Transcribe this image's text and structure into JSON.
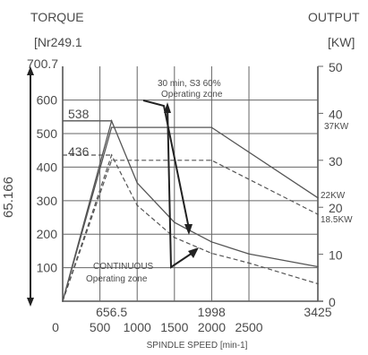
{
  "chart_data": {
    "type": "line",
    "title_left": "TORQUE",
    "unit_left": "[Nr249.1",
    "title_right": "OUTPUT",
    "unit_right": "[KW]",
    "xlabel": "SPINDLE   SPEED [min-1]",
    "ylabel_vertical": "65.166",
    "top_left_tick": "700.7",
    "x_ticks_main": [
      "0",
      "500",
      "1000",
      "1500",
      "2000",
      "2500"
    ],
    "x_ticks_special": [
      "656.5",
      "1998",
      "3425"
    ],
    "y_left_ticks": [
      "0",
      "100",
      "200",
      "300",
      "400",
      "500",
      "600"
    ],
    "y_right_ticks": [
      "0",
      "10",
      "20",
      "30",
      "40",
      "50"
    ],
    "level_labels": [
      "538",
      "436"
    ],
    "right_labels": [
      "37KW",
      "22KW",
      "18.5KW"
    ],
    "annotations": {
      "s3_line1": "30 min, S3 60%",
      "s3_line2": "Operating zone",
      "cont_line1": "CONTINUOUS",
      "cont_line2": "Operating zone"
    },
    "xlim": [
      0,
      3425
    ],
    "ylim_torque": [
      0,
      700.7
    ],
    "ylim_output": [
      0,
      50
    ],
    "series": [
      {
        "name": "30 min, S3 60%",
        "quantity": "torque",
        "style": "solid",
        "x": [
          0,
          656.5,
          1000,
          1500,
          1998,
          2500,
          3425
        ],
        "y": [
          0,
          538,
          353,
          235,
          177,
          141,
          103
        ]
      },
      {
        "name": "CONTINUOUS",
        "quantity": "torque",
        "style": "dashed",
        "x": [
          0,
          656.5,
          1000,
          1500,
          1998,
          2500,
          3425
        ],
        "y": [
          0,
          436,
          286,
          190,
          143,
          114,
          52
        ]
      },
      {
        "name": "30 min, S3 60%",
        "quantity": "output",
        "style": "solid",
        "x": [
          0,
          656.5,
          1998,
          3425
        ],
        "y": [
          0,
          37,
          37,
          22
        ]
      },
      {
        "name": "CONTINUOUS",
        "quantity": "output",
        "style": "dashed",
        "x": [
          0,
          656.5,
          1998,
          3425
        ],
        "y": [
          0,
          30,
          30,
          18.5
        ]
      }
    ]
  }
}
